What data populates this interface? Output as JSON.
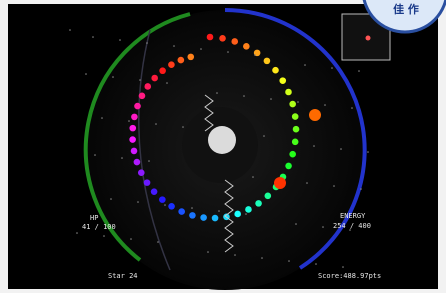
{
  "hud": {
    "hp_label": "HP",
    "hp_value": "41 / 100",
    "energy_label": "ENERGY",
    "energy_value": "254 / 400",
    "stars": "Star 24",
    "score": "Score:488.97pts"
  },
  "badge": {
    "text": "佳 作"
  }
}
